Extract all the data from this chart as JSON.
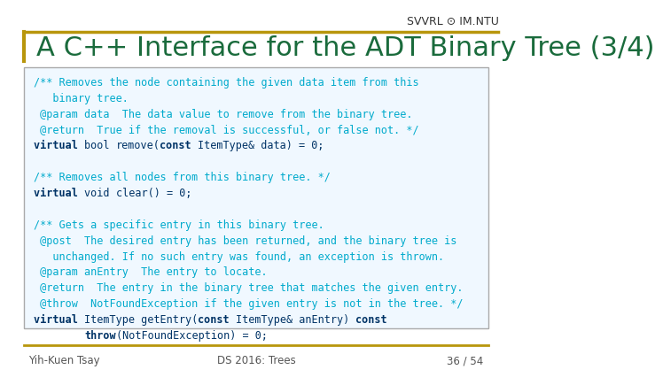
{
  "title": "A C++ Interface for the ADT Binary Tree (3/4)",
  "header_label": "SVVRL ⊙ IM.NTU",
  "bg_color": "#ffffff",
  "title_color": "#1a6b3c",
  "header_line_color": "#b8960c",
  "title_fontsize": 22,
  "code_box_bg": "#f0f8ff",
  "code_box_border": "#aaaaaa",
  "comment_color": "#00aacc",
  "code_color": "#003366",
  "footer_left": "Yih-Kuen Tsay",
  "footer_center": "DS 2016: Trees",
  "footer_right": "36 / 54",
  "footer_color": "#555555",
  "footer_line_color": "#b8960c",
  "code_lines": [
    {
      "text": "/** Removes the node containing the given data item from this",
      "style": "comment"
    },
    {
      "text": "   binary tree.",
      "style": "comment"
    },
    {
      "text": " @param data  The data value to remove from the binary tree.",
      "style": "comment"
    },
    {
      "text": " @return  True if the removal is successful, or false not. */",
      "style": "comment"
    },
    {
      "text": "virtual bool remove(const ItemType& data) = 0;",
      "style": "code_bool"
    },
    {
      "text": "",
      "style": "blank"
    },
    {
      "text": "/** Removes all nodes from this binary tree. */",
      "style": "comment"
    },
    {
      "text": "virtual void clear() = 0;",
      "style": "code_void"
    },
    {
      "text": "",
      "style": "blank"
    },
    {
      "text": "/** Gets a specific entry in this binary tree.",
      "style": "comment"
    },
    {
      "text": " @post  The desired entry has been returned, and the binary tree is",
      "style": "comment"
    },
    {
      "text": "   unchanged. If no such entry was found, an exception is thrown.",
      "style": "comment"
    },
    {
      "text": " @param anEntry  The entry to locate.",
      "style": "comment"
    },
    {
      "text": " @return  The entry in the binary tree that matches the given entry.",
      "style": "comment"
    },
    {
      "text": " @throw  NotFoundException if the given entry is not in the tree. */",
      "style": "comment"
    },
    {
      "text": "virtual ItemType getEntry(const ItemType& anEntry) const",
      "style": "code_getentry"
    },
    {
      "text": "        throw(NotFoundException) = 0;",
      "style": "code_throw"
    }
  ]
}
